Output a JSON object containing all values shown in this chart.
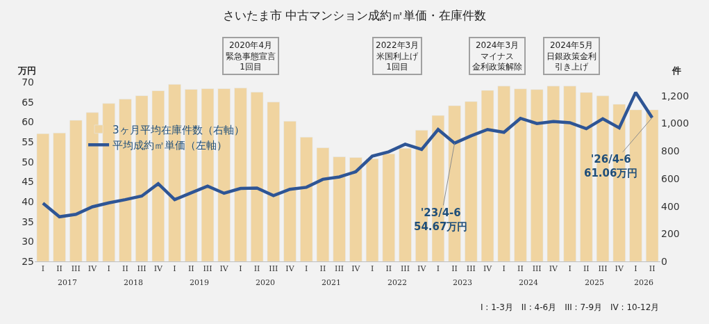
{
  "chart_data": {
    "type": "bar",
    "title": "さいたま市 中古マンション成約㎡単価・在庫件数",
    "ylabel": "万円",
    "y2label": "件",
    "categories": [
      "I",
      "II",
      "III",
      "IV",
      "I",
      "II",
      "III",
      "IV",
      "I",
      "II",
      "III",
      "IV",
      "I",
      "II",
      "III",
      "IV",
      "I",
      "II",
      "III",
      "IV",
      "I",
      "II",
      "III",
      "IV",
      "I",
      "II",
      "III",
      "IV",
      "I",
      "II",
      "III",
      "IV",
      "I",
      "II",
      "III",
      "IV",
      "I",
      "II"
    ],
    "series": [
      {
        "name": "3ヶ月平均在庫件数（右軸）",
        "axis": "y2",
        "color": "#f0d4a0",
        "values": [
          926,
          931,
          1023,
          1079,
          1145,
          1176,
          1201,
          1237,
          1283,
          1247,
          1252,
          1252,
          1257,
          1227,
          1155,
          1016,
          901,
          824,
          758,
          753,
          744,
          780,
          820,
          951,
          1058,
          1129,
          1159,
          1240,
          1271,
          1251,
          1246,
          1271,
          1271,
          1225,
          1200,
          1139,
          1099,
          1099
        ]
      },
      {
        "name": "平均成約㎡単価（左軸）",
        "type": "line",
        "color": "#2e5595",
        "values": [
          39.6,
          36.2,
          36.8,
          38.7,
          39.7,
          40.5,
          41.4,
          44.5,
          40.5,
          42.2,
          43.9,
          42.1,
          43.3,
          43.4,
          41.5,
          43.1,
          43.6,
          45.6,
          46.2,
          47.5,
          51.4,
          52.5,
          54.4,
          53.1,
          58.1,
          54.67,
          56.5,
          58.1,
          57.4,
          60.9,
          59.6,
          60.1,
          59.8,
          58.3,
          60.8,
          58.5,
          67.4,
          61.06
        ],
        "value_labels": [
          null,
          null,
          null,
          null,
          null,
          null,
          null,
          null,
          null,
          null,
          null,
          null,
          null,
          null,
          null,
          null,
          null,
          null,
          null,
          null,
          null,
          null,
          null,
          null,
          null,
          "'23/4-6\n54.67万円",
          null,
          null,
          null,
          null,
          null,
          null,
          null,
          null,
          null,
          null,
          null,
          "'26/4-6\n61.06万円"
        ]
      }
    ],
    "ylim": [
      25,
      70
    ],
    "yticks": [
      25,
      30,
      35,
      40,
      45,
      50,
      55,
      60,
      65,
      70
    ],
    "y2lim": [
      0,
      1300
    ],
    "y2ticks": [
      {
        "value": 0,
        "label": "0"
      },
      {
        "value": 200,
        "label": "200"
      },
      {
        "value": 400,
        "label": "400"
      },
      {
        "value": 600,
        "label": "600"
      },
      {
        "value": 800,
        "label": "800"
      },
      {
        "value": 1000,
        "label": "1,000"
      },
      {
        "value": 1200,
        "label": "1,200"
      }
    ],
    "legend": "top left",
    "grid": false,
    "annotations": [
      "2017",
      "2018",
      "2019",
      "2020",
      "2021",
      "2022",
      "2023",
      "2024",
      "2025",
      "2026",
      "2020年4月緊急事態宣言1回目",
      "2022年3月米国利上げ1回目",
      "2024年3月マイナス金利政策解除",
      "2024年5月日銀政策金利引き上げ",
      "I : 1-3月　II : 4-6月　III : 7-9月　IV : 10-12月"
    ]
  }
}
